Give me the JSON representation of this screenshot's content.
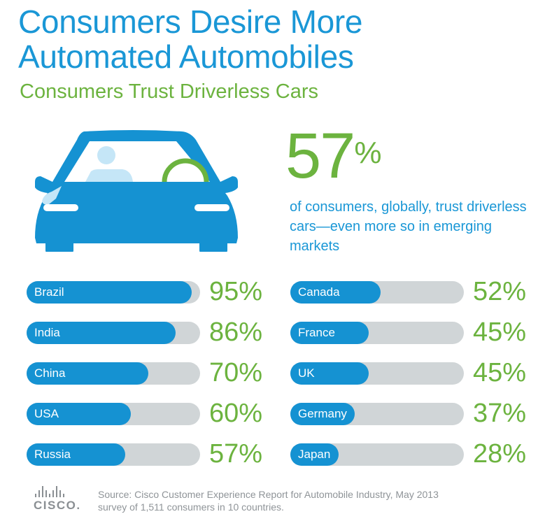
{
  "title_line1": "Consumers Desire More",
  "title_line2": "Automated Automobiles",
  "subtitle": "Consumers Trust Driverless Cars",
  "highlight": {
    "value": "57",
    "unit": "%",
    "description": "of consumers, globally, trust driverless cars—even more so in emerging markets"
  },
  "colors": {
    "brand_blue": "#1592d2",
    "accent_green": "#6cb33f",
    "track_gray": "#d0d5d7"
  },
  "icons": {
    "car": "car-icon",
    "driver": "person-icon",
    "steering": "steering-wheel-icon",
    "logo": "cisco-logo-icon"
  },
  "logo_text": "CISCO.",
  "source": {
    "line1": "Source: Cisco Customer Experience Report for Automobile Industry, May 2013",
    "line2": "survey of 1,511 consumers in 10 countries."
  },
  "chart_data": {
    "type": "bar",
    "orientation": "horizontal",
    "title": "Consumers Trust Driverless Cars",
    "unit": "%",
    "xlim": [
      0,
      100
    ],
    "categories": [
      "Brazil",
      "India",
      "China",
      "USA",
      "Russia",
      "Canada",
      "France",
      "UK",
      "Germany",
      "Japan"
    ],
    "values": [
      95,
      86,
      70,
      60,
      57,
      52,
      45,
      45,
      37,
      28
    ],
    "labels": [
      "95%",
      "86%",
      "70%",
      "60%",
      "57%",
      "52%",
      "45%",
      "45%",
      "37%",
      "28%"
    ],
    "columns": [
      {
        "position": "left",
        "items": [
          0,
          1,
          2,
          3,
          4
        ]
      },
      {
        "position": "right",
        "items": [
          5,
          6,
          7,
          8,
          9
        ]
      }
    ]
  }
}
